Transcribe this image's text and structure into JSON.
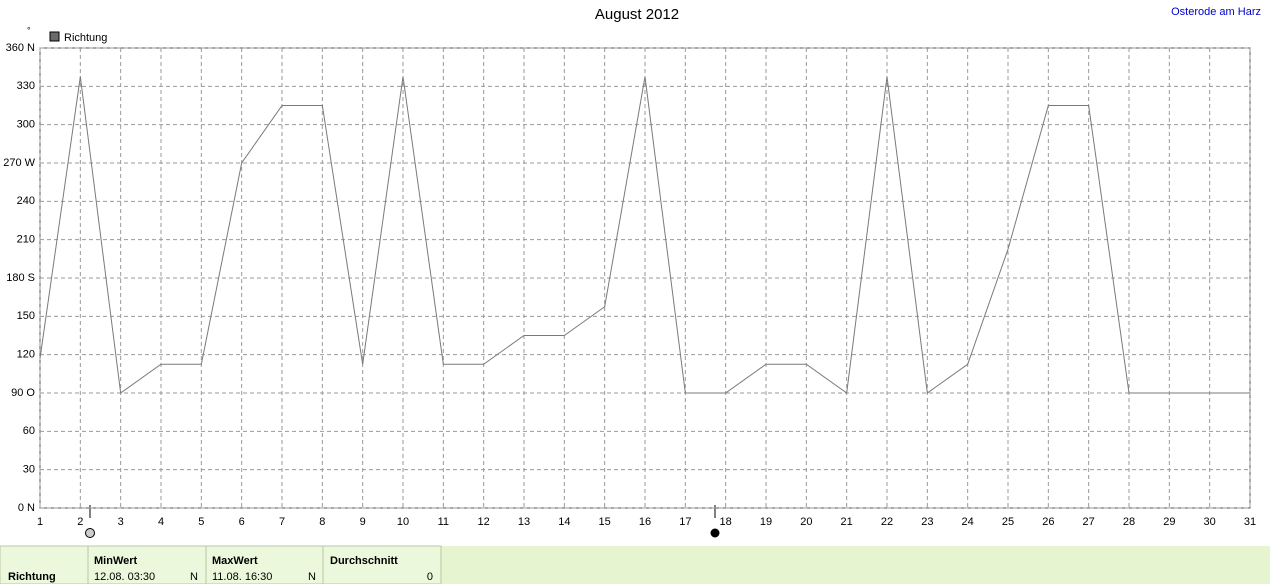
{
  "chart_data": {
    "type": "line",
    "title": "August 2012",
    "location": "Osterode am Harz",
    "unit": "°",
    "x": [
      1,
      2,
      3,
      4,
      5,
      6,
      7,
      8,
      9,
      10,
      11,
      12,
      13,
      14,
      15,
      16,
      17,
      18,
      19,
      20,
      21,
      22,
      23,
      24,
      25,
      26,
      27,
      28,
      29,
      30,
      31
    ],
    "series": [
      {
        "name": "Richtung",
        "color": "#7a7a7a",
        "values": [
          117,
          337.5,
          90,
          112.5,
          112.5,
          270,
          315,
          315,
          112.5,
          337.5,
          112.5,
          112.5,
          135,
          135,
          157.5,
          337.5,
          90,
          90,
          112.5,
          112.5,
          90,
          337.5,
          90,
          112.5,
          202.5,
          315,
          315,
          90,
          90,
          90,
          90
        ]
      }
    ],
    "xlim": [
      1,
      31
    ],
    "xticks": [
      1,
      2,
      3,
      4,
      5,
      6,
      7,
      8,
      9,
      10,
      11,
      12,
      13,
      14,
      15,
      16,
      17,
      18,
      19,
      20,
      21,
      22,
      23,
      24,
      25,
      26,
      27,
      28,
      29,
      30,
      31
    ],
    "ylim": [
      0,
      360
    ],
    "yticks": [
      {
        "value": 0,
        "label": "0 N"
      },
      30,
      60,
      {
        "value": 90,
        "label": "90 O"
      },
      120,
      150,
      {
        "value": 180,
        "label": "180 S"
      },
      210,
      240,
      {
        "value": 270,
        "label": "270 W"
      },
      300,
      330,
      {
        "value": 360,
        "label": "360 N"
      }
    ],
    "grid": true,
    "legend": "top-left"
  },
  "summary": {
    "row_label": "Richtung",
    "columns": [
      {
        "header": "MinWert",
        "time": "12.08.  03:30",
        "dir": "N"
      },
      {
        "header": "MaxWert",
        "time": "11.08.  16:30",
        "dir": "N"
      },
      {
        "header": "Durchschnitt",
        "value": "0"
      }
    ]
  }
}
